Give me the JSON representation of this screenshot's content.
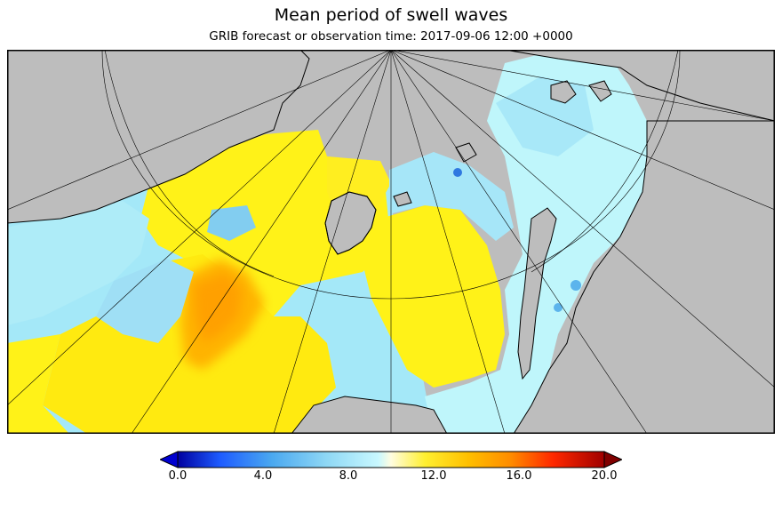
{
  "title": "Mean period of swell waves",
  "subtitle": "GRIB forecast or observation time: 2017-09-06 12:00 +0000",
  "map": {
    "projection": "polar stereographic",
    "land_color": "#bdbdbd",
    "coastline_color": "#000000",
    "graticule_color": "#000000"
  },
  "colorbar": {
    "min": 0.0,
    "max": 20.0,
    "extend": "both",
    "ticks": [
      "0.0",
      "4.0",
      "8.0",
      "12.0",
      "16.0",
      "20.0"
    ],
    "colors": [
      "#0000a0",
      "#1e5cff",
      "#4aa8f0",
      "#8fd8f5",
      "#c8f8ff",
      "#fffde0",
      "#ffef30",
      "#ffc000",
      "#ff8c00",
      "#ff2800",
      "#a00000"
    ]
  }
}
